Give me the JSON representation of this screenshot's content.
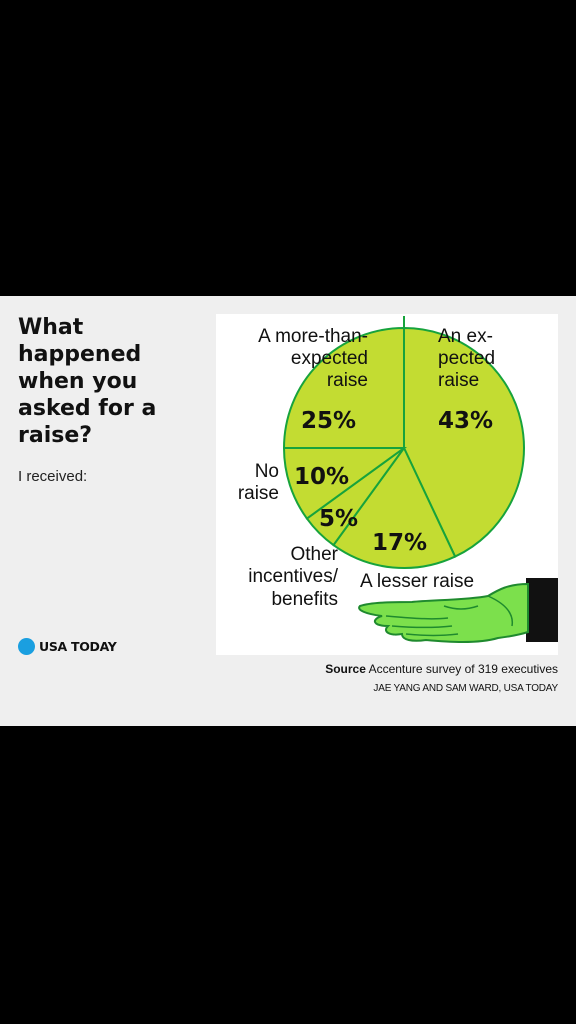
{
  "title": "What happened when you asked for a raise?",
  "subtitle": "I received:",
  "brand": "USA TODAY",
  "source_label": "Source",
  "source_text": "Accenture survey of 319 executives",
  "credit": "JAE YANG AND SAM WARD, USA TODAY",
  "colors": {
    "slice": "#c3dc32",
    "stroke": "#17a33c",
    "brand": "#1a9fe0",
    "hand": "#7ce04c"
  },
  "chart_data": {
    "type": "pie",
    "title": "What happened when you asked for a raise?",
    "categories": [
      "An expected raise",
      "A lesser raise",
      "Other incentives/ benefits",
      "No raise",
      "A more-than-expected raise"
    ],
    "values": [
      43,
      17,
      5,
      10,
      25
    ],
    "labels": [
      "43%",
      "17%",
      "5%",
      "10%",
      "25%"
    ],
    "legend": "none"
  }
}
